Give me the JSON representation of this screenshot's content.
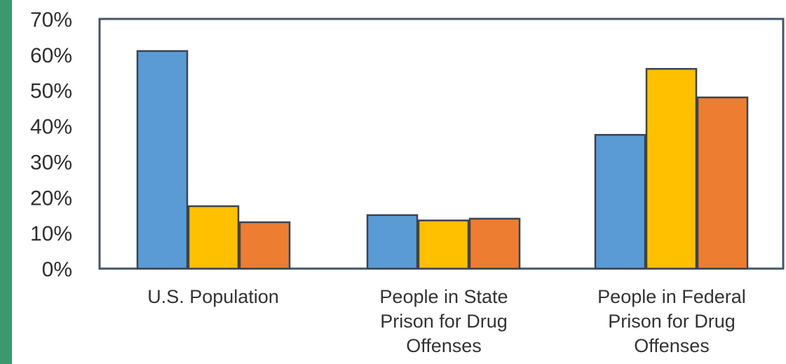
{
  "colors": {
    "left_stripe": "#3a9a6e",
    "plot_border": "#44546a",
    "bar_outline": "#3b4450"
  },
  "chart_data": {
    "type": "bar",
    "title": "",
    "xlabel": "",
    "ylabel": "",
    "ylim": [
      0,
      70
    ],
    "y_tick_values": [
      0,
      10,
      20,
      30,
      40,
      50,
      60,
      70
    ],
    "y_tick_labels": [
      "0%",
      "10%",
      "20%",
      "30%",
      "40%",
      "50%",
      "60%",
      "70%"
    ],
    "categories": [
      [
        "U.S. Population"
      ],
      [
        "People in State",
        "Prison for Drug",
        "Offenses"
      ],
      [
        "People in Federal",
        "Prison for Drug",
        "Offenses"
      ]
    ],
    "series": [
      {
        "color": "#5b9bd5",
        "values": [
          61,
          15,
          37.5
        ]
      },
      {
        "color": "#ffc000",
        "values": [
          17.5,
          13.5,
          56
        ]
      },
      {
        "color": "#ed7d31",
        "values": [
          13,
          14,
          48
        ]
      }
    ],
    "grid": false,
    "legend": "none"
  }
}
